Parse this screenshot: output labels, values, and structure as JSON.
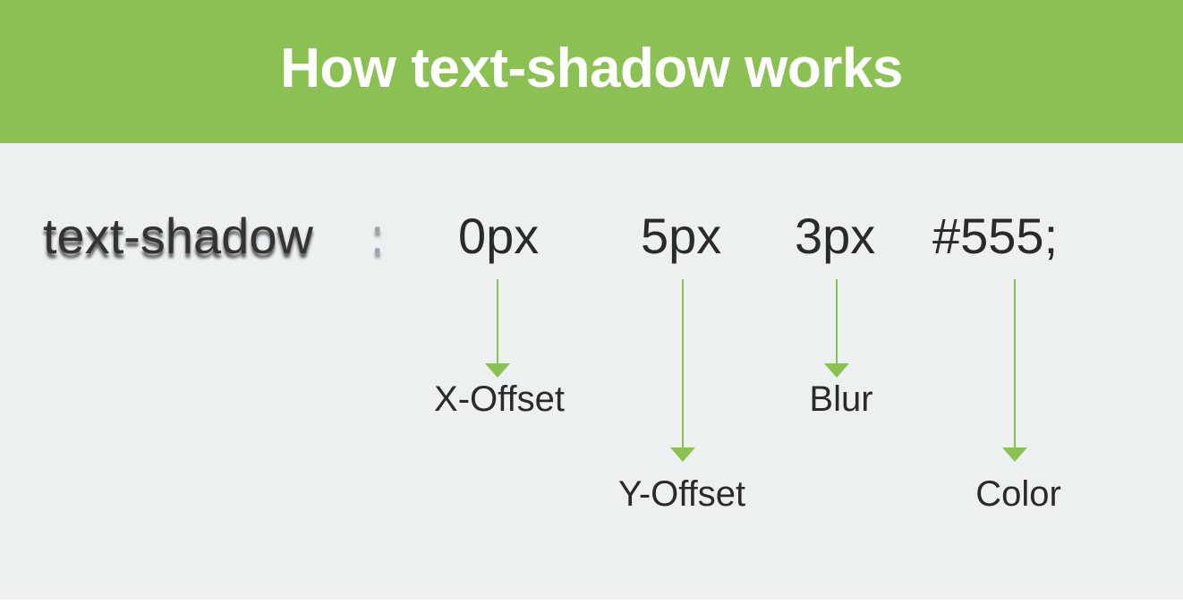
{
  "header": {
    "title": "How text-shadow works"
  },
  "code": {
    "property": "text-shadow",
    "colon": ":",
    "x_offset_value": "0px",
    "y_offset_value": "5px",
    "blur_value": "3px",
    "color_value": "#555;"
  },
  "labels": {
    "x_offset": "X-Offset",
    "y_offset": "Y-Offset",
    "blur": "Blur",
    "color": "Color"
  },
  "colors": {
    "accent": "#8bc152",
    "background": "#ecf0f1",
    "shadow": "#555555"
  }
}
